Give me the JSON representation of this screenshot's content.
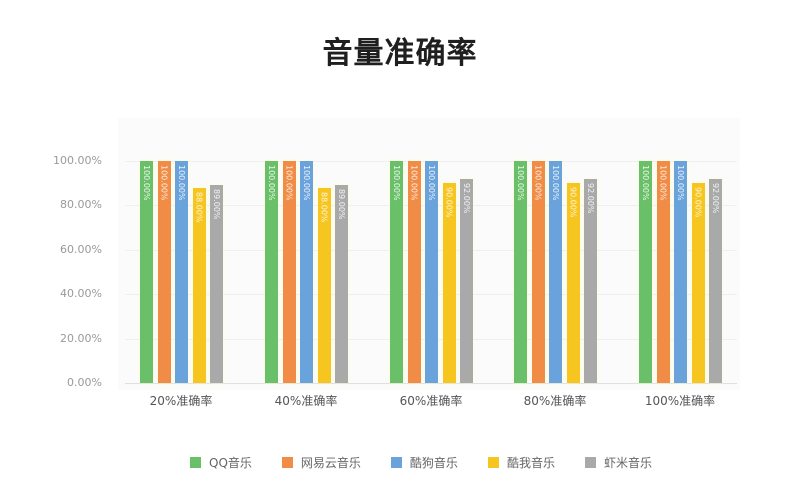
{
  "chart_data": {
    "type": "bar",
    "title": "音量准确率",
    "xlabel": "",
    "ylabel": "",
    "ylim": [
      0,
      100
    ],
    "yticks": [
      "0.00%",
      "20.00%",
      "40.00%",
      "60.00%",
      "80.00%",
      "100.00%"
    ],
    "categories": [
      "20%准确率",
      "40%准确率",
      "60%准确率",
      "80%准确率",
      "100%准确率"
    ],
    "series": [
      {
        "name": "QQ音乐",
        "color": "#6abf69",
        "values": [
          100,
          100,
          100,
          100,
          100
        ],
        "labels": [
          "100.00%",
          "100.00%",
          "100.00%",
          "100.00%",
          "100.00%"
        ]
      },
      {
        "name": "网易云音乐",
        "color": "#f08c45",
        "values": [
          100,
          100,
          100,
          100,
          100
        ],
        "labels": [
          "100.00%",
          "100.00%",
          "100.00%",
          "100.00%",
          "100.00%"
        ]
      },
      {
        "name": "酷狗音乐",
        "color": "#6aa3db",
        "values": [
          100,
          100,
          100,
          100,
          100
        ],
        "labels": [
          "100.00%",
          "100.00%",
          "100.00%",
          "100.00%",
          "100.00%"
        ]
      },
      {
        "name": "酷我音乐",
        "color": "#f7c520",
        "values": [
          88,
          88,
          90,
          90,
          90
        ],
        "labels": [
          "88.00%",
          "88.00%",
          "90.00%",
          "90.00%",
          "90.00%"
        ]
      },
      {
        "name": "虾米音乐",
        "color": "#a9a9a9",
        "values": [
          89,
          89,
          92,
          92,
          92
        ],
        "labels": [
          "89.00%",
          "89.00%",
          "92.00%",
          "92.00%",
          "92.00%"
        ]
      }
    ],
    "grid": true,
    "legend_position": "bottom"
  }
}
